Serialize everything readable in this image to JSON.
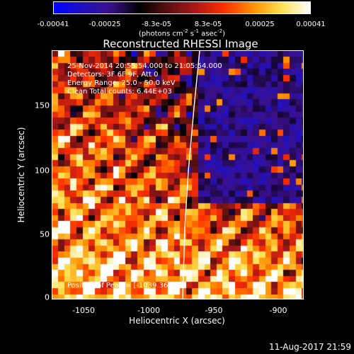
{
  "colorbar": {
    "ticks": [
      "-0.00041",
      "-0.00025",
      "-8.3e-05",
      "8.3e-05",
      "0.00025",
      "0.00041"
    ],
    "unit_main": "(photons cm",
    "unit_exp1": "-2",
    "unit_mid": " s",
    "unit_exp2": "-1",
    "unit_mid2": " asec",
    "unit_exp3": "-2",
    "unit_end": ")",
    "colormap": [
      "#0000ff",
      "#2010c0",
      "#3a108a",
      "#000000",
      "#5a1010",
      "#b01818",
      "#ff3000",
      "#ff9000",
      "#ffe050",
      "#ffffff"
    ]
  },
  "title": "Reconstructed RHESSI Image",
  "info_lines": [
    "25-Nov-2014 20:55:54.000 to 21:05:54.000",
    "Detectors: 3F 6F 9F, Att 0",
    "Energy Range: 25.0 - 50.0 keV",
    "Clean     Total counts: 6.44E+03"
  ],
  "peak_label": "Position of Peak = [-1039.36,",
  "x_axis": {
    "label": "Heliocentric X (arcsec)",
    "ticks": [
      "-1050",
      "-1000",
      "-950",
      "-900"
    ],
    "range": [
      -1075,
      -880
    ]
  },
  "y_axis": {
    "label": "Heliocentric Y (arcsec)",
    "ticks": [
      "0",
      "50",
      "100",
      "150"
    ],
    "range": [
      -5,
      187
    ]
  },
  "timestamp": "11-Aug-2017 21:59"
}
